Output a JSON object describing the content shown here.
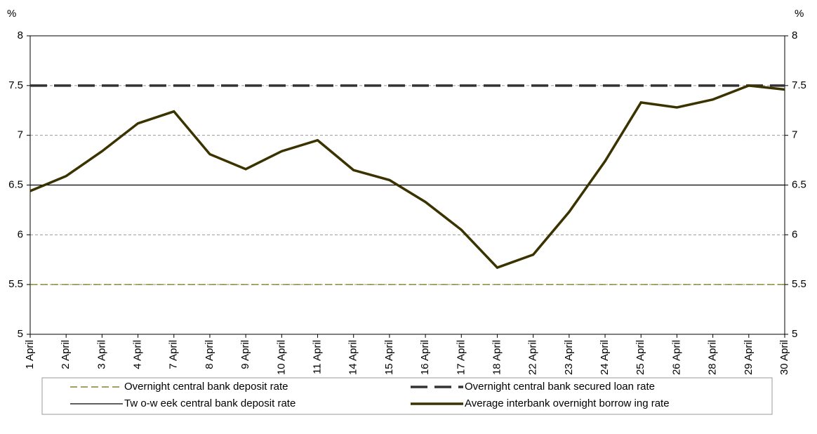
{
  "chart_data": {
    "type": "line",
    "y_axis_label": "%",
    "y2_axis_label": "%",
    "categories": [
      "1 April",
      "2 April",
      "3 April",
      "4 April",
      "7 April",
      "8 April",
      "9 April",
      "10 April",
      "11 April",
      "14 April",
      "15 April",
      "16 April",
      "17 April",
      "18 April",
      "22 April",
      "23 April",
      "24 April",
      "25 April",
      "26 April",
      "28 April",
      "29 April",
      "30 April"
    ],
    "ylim": [
      5,
      8
    ],
    "yticks": [
      5,
      5.5,
      6,
      6.5,
      7,
      7.5,
      8
    ],
    "y2lim": [
      5,
      8
    ],
    "y2ticks": [
      5,
      5.5,
      6,
      6.5,
      7,
      7.5,
      8
    ],
    "grid": true,
    "legend_position": "bottom",
    "series": [
      {
        "name": "Overnight central bank deposit rate",
        "color": "#6b6b00",
        "line_style": "short-dash",
        "line_weight": "thin",
        "values": [
          5.5,
          5.5,
          5.5,
          5.5,
          5.5,
          5.5,
          5.5,
          5.5,
          5.5,
          5.5,
          5.5,
          5.5,
          5.5,
          5.5,
          5.5,
          5.5,
          5.5,
          5.5,
          5.5,
          5.5,
          5.5,
          5.5
        ]
      },
      {
        "name": "Overnight central bank secured loan rate",
        "color": "#333333",
        "line_style": "long-dash",
        "line_weight": "thick",
        "values": [
          7.5,
          7.5,
          7.5,
          7.5,
          7.5,
          7.5,
          7.5,
          7.5,
          7.5,
          7.5,
          7.5,
          7.5,
          7.5,
          7.5,
          7.5,
          7.5,
          7.5,
          7.5,
          7.5,
          7.5,
          7.5,
          7.5
        ]
      },
      {
        "name": "Tw o-w eek central bank deposit rate",
        "color": "#000000",
        "line_style": "solid",
        "line_weight": "thin",
        "values": [
          6.5,
          6.5,
          6.5,
          6.5,
          6.5,
          6.5,
          6.5,
          6.5,
          6.5,
          6.5,
          6.5,
          6.5,
          6.5,
          6.5,
          6.5,
          6.5,
          6.5,
          6.5,
          6.5,
          6.5,
          6.5,
          6.5
        ]
      },
      {
        "name": "Average interbank overnight borrow ing rate",
        "color": "#3a3300",
        "line_style": "solid",
        "line_weight": "thick",
        "values": [
          6.44,
          6.59,
          6.84,
          7.12,
          7.24,
          6.81,
          6.66,
          6.84,
          6.95,
          6.65,
          6.55,
          6.33,
          6.05,
          5.67,
          5.8,
          6.23,
          6.74,
          7.33,
          7.28,
          7.36,
          7.5,
          7.46
        ]
      }
    ]
  }
}
